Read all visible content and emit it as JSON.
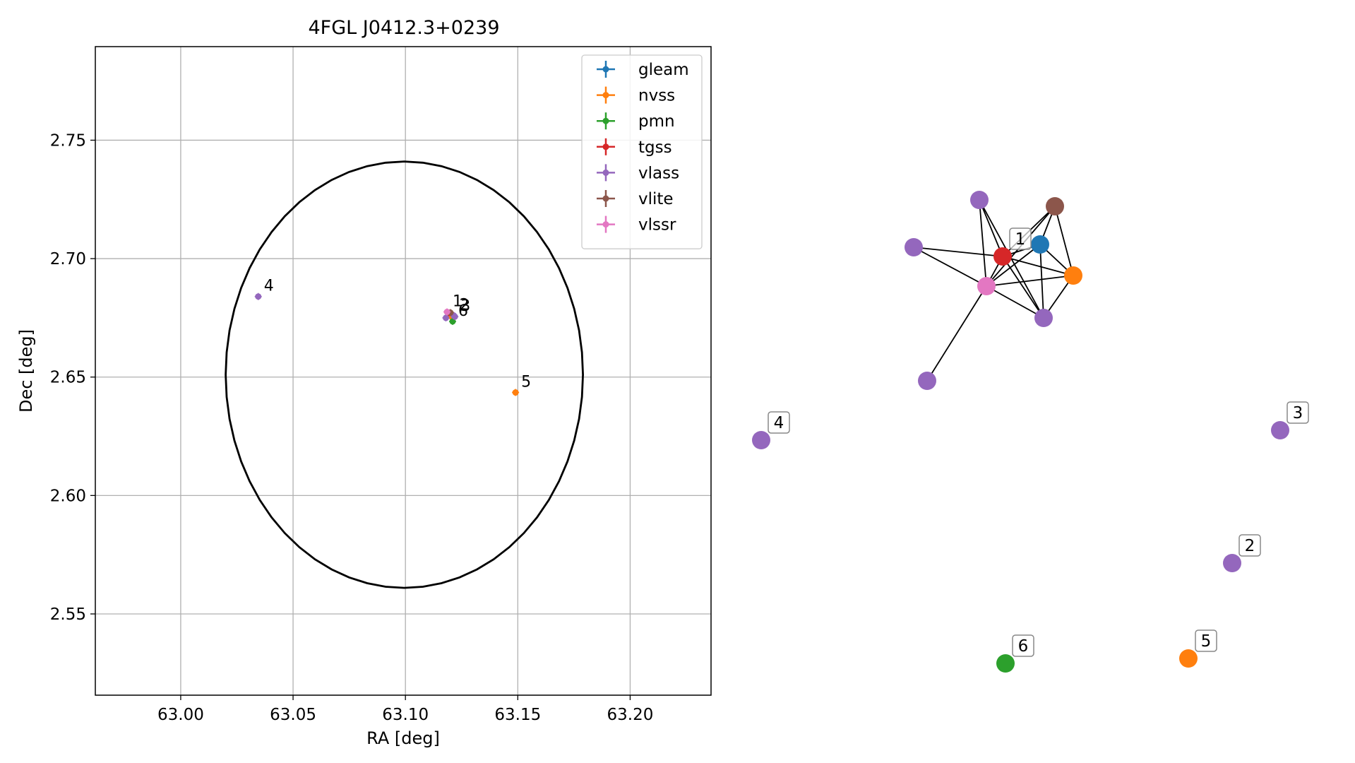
{
  "chart_data": [
    {
      "type": "scatter",
      "title": "4FGL J0412.3+0239",
      "xlabel": "RA [deg]",
      "ylabel": "Dec [deg]",
      "xlim": [
        62.962,
        63.236
      ],
      "ylim": [
        2.5157,
        2.7895
      ],
      "xticks": [
        63.0,
        63.05,
        63.1,
        63.15,
        63.2
      ],
      "xtick_labels": [
        "63.00",
        "63.05",
        "63.10",
        "63.15",
        "63.20"
      ],
      "yticks": [
        2.55,
        2.6,
        2.65,
        2.7,
        2.75
      ],
      "ytick_labels": [
        "2.55",
        "2.60",
        "2.65",
        "2.70",
        "2.75"
      ],
      "grid": true,
      "legend_position": "top-right",
      "legend": [
        "gleam",
        "nvss",
        "pmn",
        "tgss",
        "vlass",
        "vlite",
        "vlssr"
      ],
      "series": [
        {
          "name": "gleam",
          "color": "#1f77b4",
          "points": [
            {
              "x": 63.1195,
              "y": 2.6765
            }
          ]
        },
        {
          "name": "nvss",
          "color": "#ff7f0e",
          "points": [
            {
              "x": 63.1205,
              "y": 2.6755
            },
            {
              "x": 63.149,
              "y": 2.6435,
              "label": "5"
            }
          ]
        },
        {
          "name": "pmn",
          "color": "#2ca02c",
          "points": [
            {
              "x": 63.121,
              "y": 2.6735,
              "label": "6"
            }
          ]
        },
        {
          "name": "tgss",
          "color": "#d62728",
          "points": [
            {
              "x": 63.119,
              "y": 2.677
            }
          ]
        },
        {
          "name": "vlass",
          "color": "#9467bd",
          "points": [
            {
              "x": 63.118,
              "y": 2.675
            },
            {
              "x": 63.1215,
              "y": 2.676,
              "label": "2"
            },
            {
              "x": 63.122,
              "y": 2.6755,
              "label": "3"
            },
            {
              "x": 63.0345,
              "y": 2.684,
              "label": "4"
            }
          ]
        },
        {
          "name": "vlite",
          "color": "#8c564b",
          "points": [
            {
              "x": 63.12,
              "y": 2.6772
            }
          ]
        },
        {
          "name": "vlssr",
          "color": "#e377c2",
          "points": [
            {
              "x": 63.1185,
              "y": 2.6775,
              "label": "1"
            }
          ]
        }
      ],
      "ellipse": {
        "center": [
          63.0995,
          2.651
        ],
        "semi_axis_ra": 0.0795,
        "semi_axis_dec": 0.09,
        "color": "#000000"
      }
    },
    {
      "type": "network",
      "nodes": [
        {
          "id": "n1",
          "color": "#9467bd"
        },
        {
          "id": "n2",
          "color": "#8c564b"
        },
        {
          "id": "n3",
          "color": "#1f77b4"
        },
        {
          "id": "n4",
          "color": "#d62728",
          "label": "1"
        },
        {
          "id": "n5",
          "color": "#9467bd"
        },
        {
          "id": "n6",
          "color": "#ff7f0e"
        },
        {
          "id": "n7",
          "color": "#e377c2"
        },
        {
          "id": "n8",
          "color": "#9467bd"
        },
        {
          "id": "n9",
          "color": "#9467bd"
        },
        {
          "id": "n10",
          "color": "#9467bd",
          "label": "4"
        },
        {
          "id": "n11",
          "color": "#9467bd",
          "label": "3"
        },
        {
          "id": "n12",
          "color": "#9467bd",
          "label": "2"
        },
        {
          "id": "n13",
          "color": "#2ca02c",
          "label": "6"
        },
        {
          "id": "n14",
          "color": "#ff7f0e",
          "label": "5"
        }
      ],
      "edges": [
        [
          "n1",
          "n4"
        ],
        [
          "n1",
          "n7"
        ],
        [
          "n1",
          "n8"
        ],
        [
          "n2",
          "n4"
        ],
        [
          "n2",
          "n7"
        ],
        [
          "n2",
          "n3"
        ],
        [
          "n2",
          "n6"
        ],
        [
          "n3",
          "n7"
        ],
        [
          "n3",
          "n6"
        ],
        [
          "n3",
          "n8"
        ],
        [
          "n3",
          "n4"
        ],
        [
          "n4",
          "n5"
        ],
        [
          "n4",
          "n6"
        ],
        [
          "n4",
          "n7"
        ],
        [
          "n4",
          "n8"
        ],
        [
          "n5",
          "n7"
        ],
        [
          "n6",
          "n7"
        ],
        [
          "n6",
          "n8"
        ],
        [
          "n7",
          "n8"
        ],
        [
          "n7",
          "n9"
        ]
      ]
    }
  ]
}
